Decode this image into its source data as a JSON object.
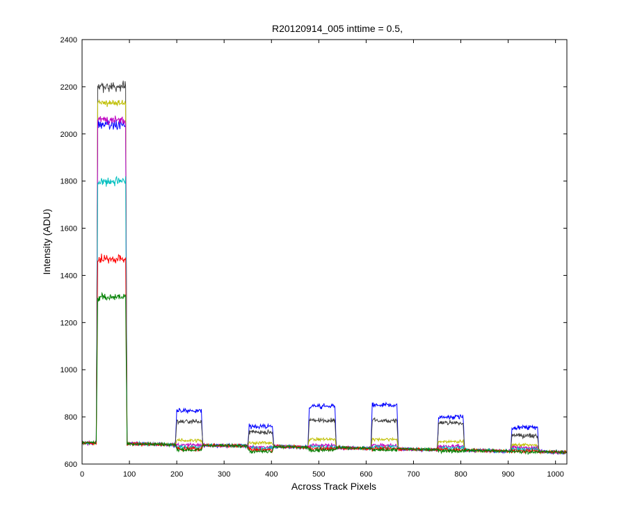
{
  "chart_data": {
    "type": "line",
    "title": "R20120914_005 inttime = 0.5,",
    "xlabel": "Across Track Pixels",
    "ylabel": "Intensity (ADU)",
    "xlim": [
      0,
      1024
    ],
    "ylim": [
      600,
      2400
    ],
    "xticks": [
      0,
      100,
      200,
      300,
      400,
      500,
      600,
      700,
      800,
      900,
      1000
    ],
    "yticks": [
      600,
      800,
      1000,
      1200,
      1400,
      1600,
      1800,
      2000,
      2200,
      2400
    ],
    "grid": false,
    "legend": "none",
    "baseline": {
      "left": 690,
      "right": 650
    },
    "bands": [
      {
        "start": 30,
        "end": 95
      },
      {
        "start": 197,
        "end": 255
      },
      {
        "start": 350,
        "end": 405
      },
      {
        "start": 477,
        "end": 537
      },
      {
        "start": 610,
        "end": 668
      },
      {
        "start": 750,
        "end": 808
      },
      {
        "start": 905,
        "end": 965
      }
    ],
    "series": [
      {
        "color": "#0000ff",
        "noise": 14,
        "levels": [
          2040,
          825,
          760,
          845,
          850,
          800,
          755
        ]
      },
      {
        "color": "#404040",
        "noise": 14,
        "levels": [
          2200,
          780,
          735,
          785,
          785,
          775,
          720
        ]
      },
      {
        "color": "#bfbf00",
        "noise": 10,
        "levels": [
          2130,
          700,
          690,
          705,
          705,
          695,
          680
        ]
      },
      {
        "color": "#bf00bf",
        "noise": 12,
        "levels": [
          2060,
          680,
          672,
          680,
          680,
          675,
          670
        ]
      },
      {
        "color": "#00bfbf",
        "noise": 14,
        "levels": [
          1800,
          672,
          666,
          672,
          672,
          668,
          662
        ]
      },
      {
        "color": "#ff0000",
        "noise": 14,
        "levels": [
          1470,
          665,
          660,
          665,
          665,
          662,
          656
        ]
      },
      {
        "color": "#008000",
        "noise": 12,
        "levels": [
          1310,
          660,
          655,
          660,
          660,
          657,
          652
        ]
      }
    ]
  }
}
